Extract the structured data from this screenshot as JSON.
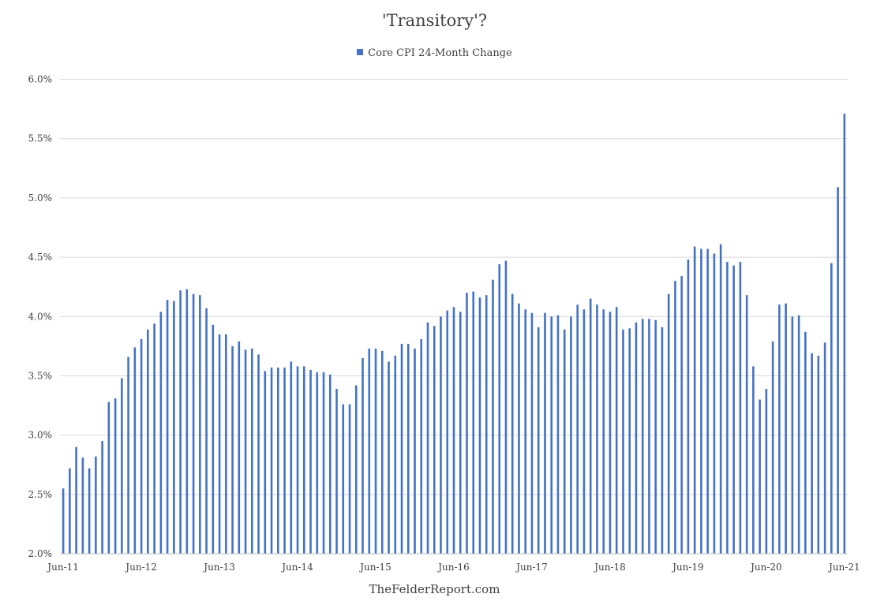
{
  "chart_data": {
    "type": "bar",
    "title": "'Transitory'?",
    "legend": {
      "label": "Core CPI 24-Month Change",
      "position": "top",
      "color": "#4472C4"
    },
    "xlabel": "",
    "ylabel": "",
    "ylim": [
      2.0,
      6.0
    ],
    "y_ticks": [
      "2.0%",
      "2.5%",
      "3.0%",
      "3.5%",
      "4.0%",
      "4.5%",
      "5.0%",
      "5.5%",
      "6.0%"
    ],
    "x_ticks": [
      "Jun-11",
      "Jun-12",
      "Jun-13",
      "Jun-14",
      "Jun-15",
      "Jun-16",
      "Jun-17",
      "Jun-18",
      "Jun-19",
      "Jun-20",
      "Jun-21"
    ],
    "grid": true,
    "bar_color": "#4472C4",
    "series": [
      {
        "name": "Core CPI 24-Month Change",
        "values": [
          2.55,
          2.72,
          2.9,
          2.81,
          2.72,
          2.82,
          2.95,
          3.28,
          3.31,
          3.48,
          3.66,
          3.74,
          3.81,
          3.89,
          3.94,
          4.04,
          4.14,
          4.13,
          4.22,
          4.23,
          4.19,
          4.18,
          4.07,
          3.93,
          3.85,
          3.85,
          3.75,
          3.79,
          3.72,
          3.73,
          3.68,
          3.54,
          3.57,
          3.57,
          3.57,
          3.62,
          3.58,
          3.58,
          3.55,
          3.53,
          3.53,
          3.51,
          3.39,
          3.26,
          3.26,
          3.42,
          3.65,
          3.73,
          3.73,
          3.71,
          3.62,
          3.67,
          3.77,
          3.77,
          3.73,
          3.81,
          3.95,
          3.92,
          4.0,
          4.05,
          4.08,
          4.04,
          4.2,
          4.21,
          4.16,
          4.18,
          4.31,
          4.44,
          4.47,
          4.19,
          4.11,
          4.06,
          4.03,
          3.91,
          4.03,
          4.0,
          4.01,
          3.89,
          4.0,
          4.1,
          4.06,
          4.15,
          4.1,
          4.06,
          4.04,
          4.08,
          3.89,
          3.9,
          3.95,
          3.98,
          3.98,
          3.97,
          3.91,
          4.19,
          4.3,
          4.34,
          4.48,
          4.59,
          4.57,
          4.57,
          4.53,
          4.61,
          4.46,
          4.43,
          4.46,
          4.18,
          3.58,
          3.3,
          3.39,
          3.79,
          4.1,
          4.11,
          4.0,
          4.01,
          3.87,
          3.69,
          3.67,
          3.78,
          4.45,
          5.09,
          5.71
        ]
      }
    ]
  },
  "footer": {
    "source": "TheFelderReport.com"
  }
}
